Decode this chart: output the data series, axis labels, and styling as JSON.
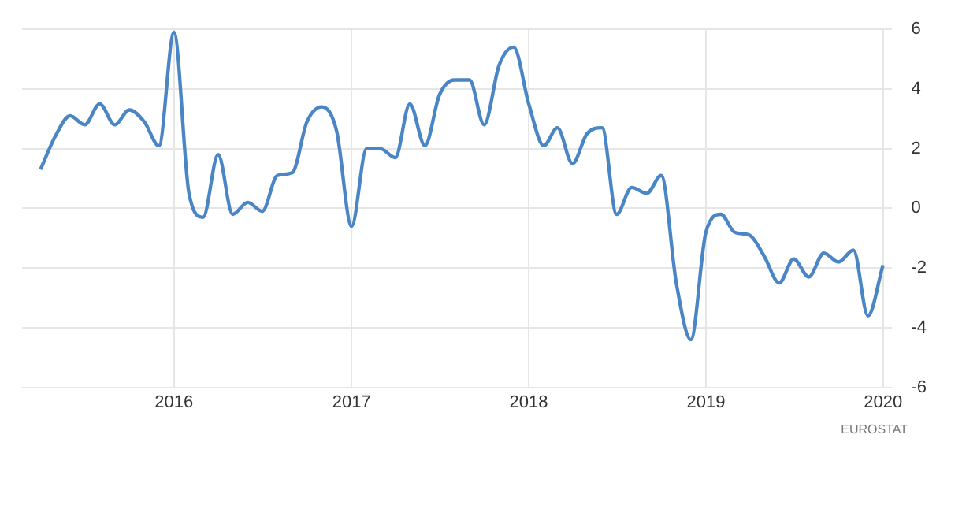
{
  "chart_data": {
    "type": "line",
    "x": [
      "2015-04",
      "2015-05",
      "2015-06",
      "2015-07",
      "2015-08",
      "2015-09",
      "2015-10",
      "2015-11",
      "2015-12",
      "2016-01",
      "2016-02",
      "2016-03",
      "2016-04",
      "2016-05",
      "2016-06",
      "2016-07",
      "2016-08",
      "2016-09",
      "2016-10",
      "2016-11",
      "2016-12",
      "2017-01",
      "2017-02",
      "2017-03",
      "2017-04",
      "2017-05",
      "2017-06",
      "2017-07",
      "2017-08",
      "2017-09",
      "2017-10",
      "2017-11",
      "2017-12",
      "2018-01",
      "2018-02",
      "2018-03",
      "2018-04",
      "2018-05",
      "2018-06",
      "2018-07",
      "2018-08",
      "2018-09",
      "2018-10",
      "2018-11",
      "2018-12",
      "2019-01",
      "2019-02",
      "2019-03",
      "2019-04",
      "2019-05",
      "2019-06",
      "2019-07",
      "2019-08",
      "2019-09",
      "2019-10",
      "2019-11",
      "2019-12",
      "2020-01"
    ],
    "series": [
      {
        "color": "#4a86c5",
        "values": [
          1.3,
          2.4,
          3.1,
          2.8,
          3.5,
          2.8,
          3.3,
          2.9,
          2.1,
          5.9,
          0.5,
          -0.3,
          1.8,
          -0.2,
          0.2,
          -0.1,
          1.1,
          1.2,
          2.9,
          3.4,
          2.6,
          -0.6,
          2.0,
          2.0,
          1.7,
          3.5,
          2.1,
          3.8,
          4.3,
          4.3,
          2.8,
          4.8,
          5.4,
          3.5,
          2.1,
          2.7,
          1.5,
          2.5,
          2.7,
          -0.2,
          0.7,
          0.5,
          1.1,
          -2.5,
          -4.4,
          -0.8,
          -0.2,
          -0.8,
          -0.9,
          -1.6,
          -2.5,
          -1.7,
          -2.3,
          -1.5,
          -1.8,
          -1.4,
          -3.6,
          -1.9
        ]
      }
    ],
    "xlim": [
      "2015-02-22",
      "2020-01-20"
    ],
    "xticks": [
      {
        "value": "2016-01",
        "label": "2016"
      },
      {
        "value": "2017-01",
        "label": "2017"
      },
      {
        "value": "2018-01",
        "label": "2018"
      },
      {
        "value": "2019-01",
        "label": "2019"
      },
      {
        "value": "2020-01",
        "label": "2020"
      }
    ],
    "ylim": [
      -6,
      6
    ],
    "yticks": [
      -6,
      -4,
      -2,
      0,
      2,
      4,
      6
    ],
    "grid": true,
    "legend": false,
    "marker": "none",
    "line_style": "solid",
    "annotations": [
      "EUROSTAT"
    ]
  }
}
